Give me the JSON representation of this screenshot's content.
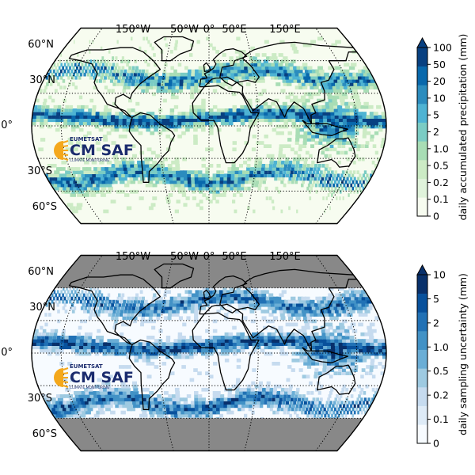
{
  "maps": [
    {
      "id": "precip",
      "lon_labels": [
        "150°W",
        "50°W",
        "0°",
        "50°E",
        "150°E"
      ],
      "lat_labels": [
        "60°N",
        "30°N",
        "0°",
        "30°S",
        "60°S"
      ],
      "colorbar": {
        "label": "daily accumulated precipitation (mm)",
        "ticks": [
          "0",
          "0.1",
          "0.2",
          "0.5",
          "1.0",
          "2",
          "5",
          "10",
          "20",
          "50",
          "100"
        ],
        "colors": [
          "#f7fcf0",
          "#e0f3db",
          "#ccebc5",
          "#a8ddb5",
          "#7bccc4",
          "#4eb3d3",
          "#2b8cbe",
          "#0868ac",
          "#084081"
        ],
        "extend": "max"
      },
      "no_data_bands": false
    },
    {
      "id": "uncertainty",
      "lon_labels": [
        "150°W",
        "50°W",
        "0°",
        "50°E",
        "150°E"
      ],
      "lat_labels": [
        "60°N",
        "30°N",
        "0°",
        "30°S",
        "60°S"
      ],
      "colorbar": {
        "label": "daily sampling uncertainty (mm)",
        "ticks": [
          "0",
          "0.1",
          "0.2",
          "0.5",
          "1.0",
          "2",
          "5",
          "10"
        ],
        "colors": [
          "#f7fbff",
          "#deebf7",
          "#c6dbef",
          "#9ecae1",
          "#6baed6",
          "#4292c6",
          "#2171b5",
          "#08519c",
          "#08306b"
        ],
        "extend": "max"
      },
      "no_data_bands": true,
      "no_data_color": "#888888"
    }
  ],
  "logo": {
    "org": "EUMETSAT",
    "name": "CM SAF",
    "tagline": "CLIMATE MONITORING",
    "colors": {
      "sun": "#f4a81c",
      "text": "#1a2b6d"
    }
  }
}
